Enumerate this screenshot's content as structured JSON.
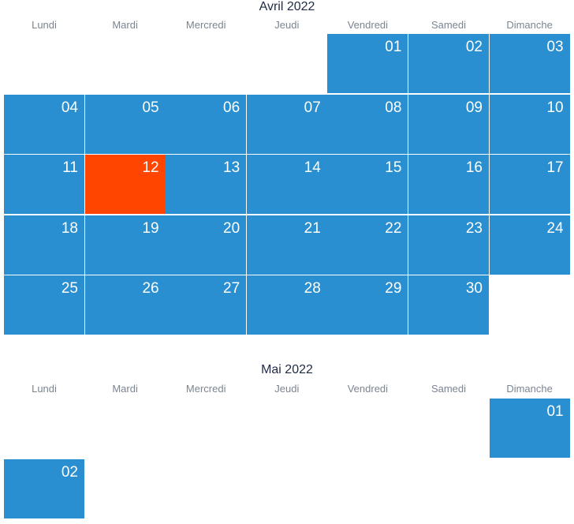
{
  "months": [
    {
      "title": "Avril 2022",
      "weekdays": [
        "Lundi",
        "Mardi",
        "Mercredi",
        "Jeudi",
        "Vendredi",
        "Samedi",
        "Dimanche"
      ],
      "start_offset": 4,
      "days": [
        "01",
        "02",
        "03",
        "04",
        "05",
        "06",
        "07",
        "08",
        "09",
        "10",
        "11",
        "12",
        "13",
        "14",
        "15",
        "16",
        "17",
        "18",
        "19",
        "20",
        "21",
        "22",
        "23",
        "24",
        "25",
        "26",
        "27",
        "28",
        "29",
        "30"
      ],
      "highlighted_day": "12"
    },
    {
      "title": "Mai 2022",
      "weekdays": [
        "Lundi",
        "Mardi",
        "Mercredi",
        "Jeudi",
        "Vendredi",
        "Samedi",
        "Dimanche"
      ],
      "start_offset": 6,
      "days": [
        "01",
        "02"
      ],
      "highlighted_day": null
    }
  ],
  "colors": {
    "day_cell": "#2a8fd0",
    "highlighted_cell": "#ff4500",
    "day_text": "#ffffff",
    "title_text": "#1f2a44",
    "weekday_text": "#7a8591"
  }
}
